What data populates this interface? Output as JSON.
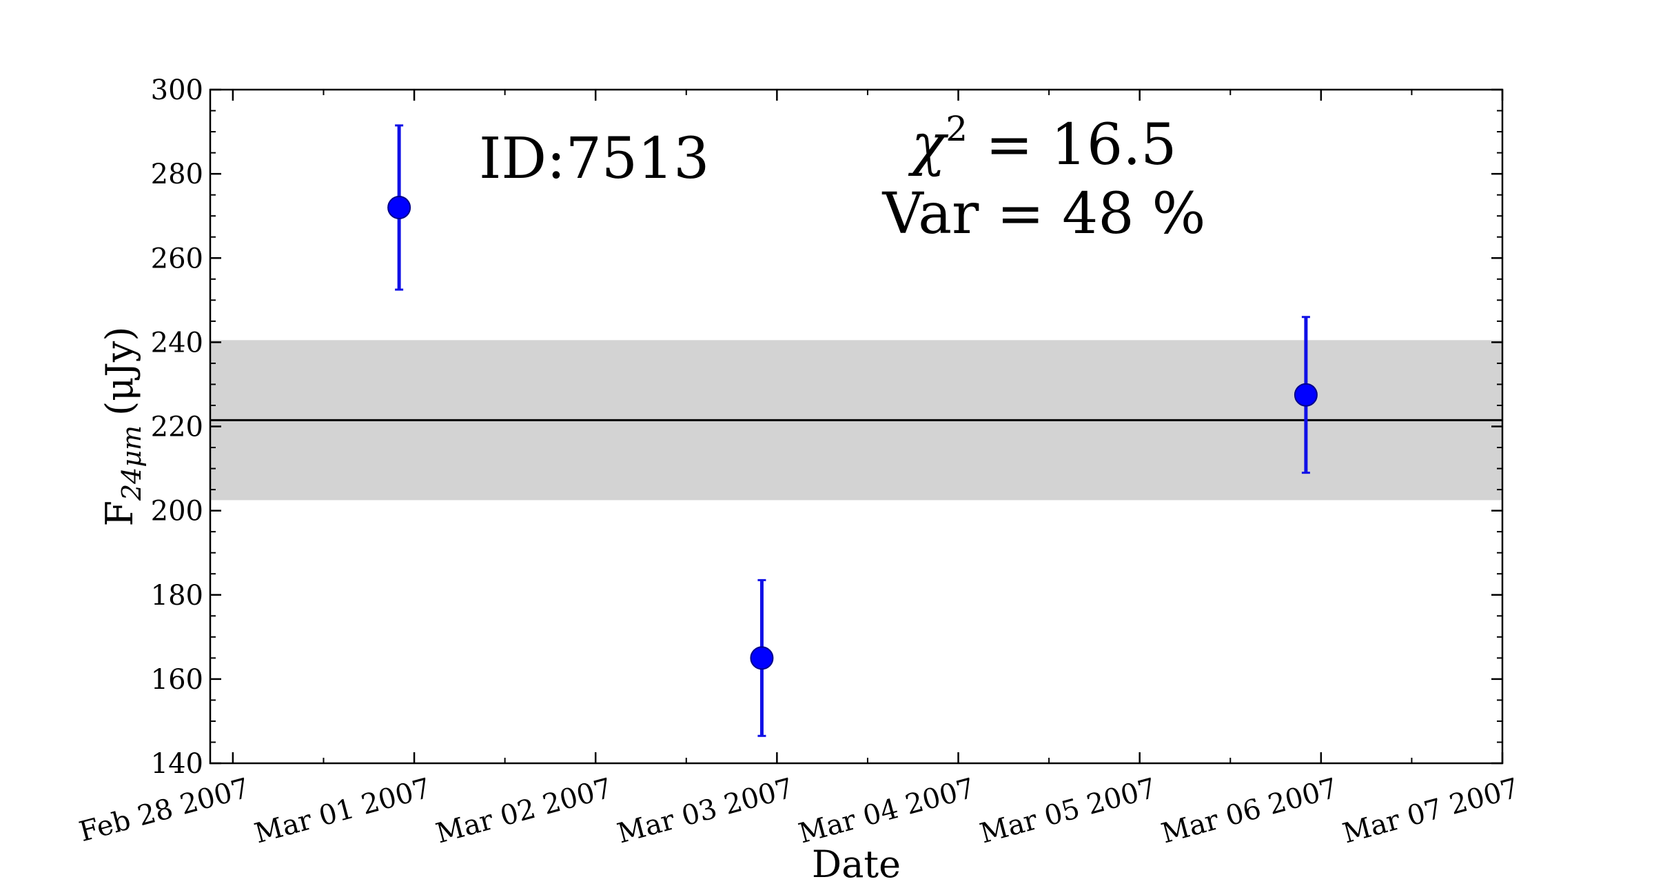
{
  "chart_data": {
    "type": "scatter",
    "x_scale": "date",
    "x_ticks": [
      "Feb 28 2007",
      "Mar 01 2007",
      "Mar 02 2007",
      "Mar 03 2007",
      "Mar 04 2007",
      "Mar 05 2007",
      "Mar 06 2007",
      "Mar 07 2007"
    ],
    "xlim": [
      "2007-02-27T21:00",
      "2007-03-07T00:00"
    ],
    "ylim": [
      140,
      300
    ],
    "y_ticks": [
      140,
      160,
      180,
      200,
      220,
      240,
      260,
      280,
      300
    ],
    "xlabel": "Date",
    "ylabel_main": "F",
    "ylabel_sub": "24μm",
    "ylabel_unit": "(μJy)",
    "points": [
      {
        "x": "2007-02-28T22:00",
        "y": 272,
        "err_low": 252.5,
        "err_high": 291.5
      },
      {
        "x": "2007-03-02T22:00",
        "y": 165,
        "err_low": 146.5,
        "err_high": 183.5
      },
      {
        "x": "2007-03-05T22:00",
        "y": 227.5,
        "err_low": 209,
        "err_high": 246
      }
    ],
    "mean_line": 221.5,
    "band": [
      202.5,
      240.5
    ],
    "grid": false,
    "colors": {
      "points": "#0000ff",
      "errorbars": "#1010e6",
      "band": "#d3d3d3",
      "mean_line": "#000000"
    },
    "annotations": {
      "id_label": "ID:7513",
      "chi2_symbol": "χ",
      "chi2_sup": "2",
      "chi2_value": " = 16.5",
      "var_text": "Var = 48 %"
    }
  }
}
